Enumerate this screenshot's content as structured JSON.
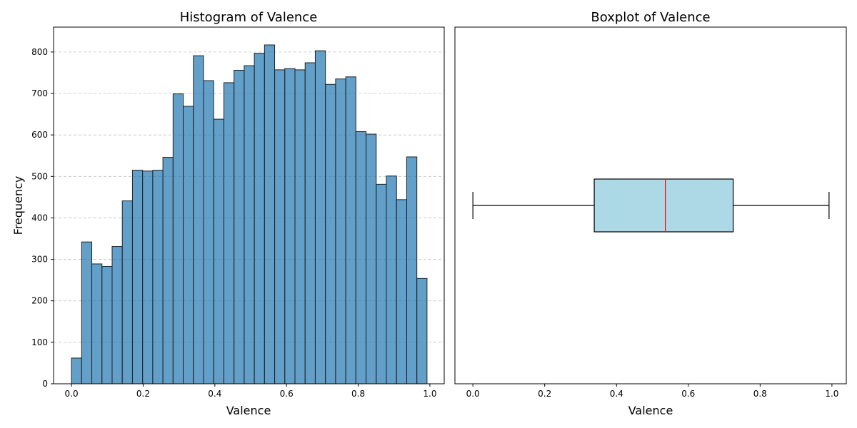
{
  "chart_data": [
    {
      "type": "bar",
      "title": "Histogram of Valence",
      "xlabel": "Valence",
      "ylabel": "Frequency",
      "xlim": [
        -0.05,
        1.04
      ],
      "ylim": [
        0,
        860
      ],
      "xticks": [
        0.0,
        0.2,
        0.4,
        0.6,
        0.8,
        1.0
      ],
      "xtick_labels": [
        "0.0",
        "0.2",
        "0.4",
        "0.6",
        "0.8",
        "1.0"
      ],
      "yticks": [
        0,
        100,
        200,
        300,
        400,
        500,
        600,
        700,
        800
      ],
      "ytick_labels": [
        "0",
        "100",
        "200",
        "300",
        "400",
        "500",
        "600",
        "700",
        "800"
      ],
      "grid": "horizontal dashed",
      "bar_color": "#1f77b4",
      "bins": {
        "start": 0.0,
        "end": 0.992,
        "count": 35
      },
      "values": [
        62,
        342,
        289,
        283,
        331,
        441,
        515,
        513,
        515,
        546,
        699,
        669,
        791,
        731,
        638,
        726,
        756,
        767,
        797,
        817,
        757,
        760,
        757,
        774,
        803,
        722,
        735,
        740,
        608,
        602,
        481,
        501,
        444,
        547,
        254
      ]
    },
    {
      "type": "boxplot",
      "title": "Boxplot of Valence",
      "xlabel": "Valence",
      "orientation": "horizontal",
      "xlim": [
        -0.05,
        1.04
      ],
      "xticks": [
        0.0,
        0.2,
        0.4,
        0.6,
        0.8,
        1.0
      ],
      "xtick_labels": [
        "0.0",
        "0.2",
        "0.4",
        "0.6",
        "0.8",
        "1.0"
      ],
      "box_color": "#add8e6",
      "median_color": "#ff0000",
      "stats": {
        "whisker_low": 0.0,
        "q1": 0.338,
        "median": 0.536,
        "q3": 0.725,
        "whisker_high": 0.992
      }
    }
  ]
}
